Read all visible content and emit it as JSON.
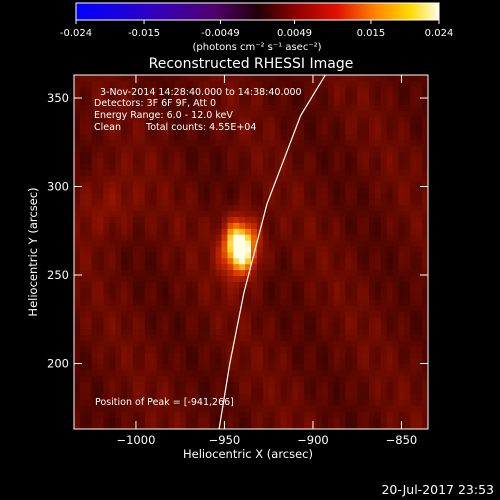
{
  "chart_data": {
    "type": "heatmap",
    "title": "Reconstructed RHESSI Image",
    "xlabel": "Heliocentric X (arcsec)",
    "ylabel": "Heliocentric Y (arcsec)",
    "xlim": [
      -1035,
      -835
    ],
    "ylim": [
      163,
      363
    ],
    "x_ticks": [
      -1000,
      -950,
      -900,
      -850
    ],
    "y_ticks": [
      200,
      250,
      300,
      350
    ],
    "colorbar": {
      "min": -0.024,
      "max": 0.024,
      "ticks": [
        "-0.024",
        "-0.015",
        "-0.0049",
        "0.0049",
        "0.015",
        "0.024"
      ],
      "tick_values": [
        -0.024,
        -0.015,
        -0.0049,
        0.0049,
        0.015,
        0.024
      ],
      "label": "(photons cm⁻² s⁻¹ asec⁻²)"
    },
    "peak_position": [
      -941,
      266
    ],
    "sources": [
      {
        "x": -941,
        "y": 266,
        "amplitude": 1.0,
        "sigma_x": 7,
        "sigma_y": 11
      },
      {
        "x": -1016,
        "y": 290,
        "amplitude": 0.18,
        "sigma_x": 12,
        "sigma_y": 14
      }
    ],
    "limb_curve": [
      [
        -953,
        163
      ],
      [
        -947,
        200
      ],
      [
        -939,
        240
      ],
      [
        -926,
        290
      ],
      [
        -907,
        340
      ],
      [
        -893,
        363
      ]
    ],
    "annotations": {
      "time_range": "3-Nov-2014 14:28:40.000 to 14:38:40.000",
      "detectors": "Detectors: 3F 6F 9F, Att 0",
      "energy": "Energy Range: 6.0 - 12.0 keV",
      "method": "Clean",
      "counts": "Total counts: 4.55E+04",
      "peak": "Position of Peak = [-941,266]"
    },
    "footer_date": "20-Jul-2017 23:53"
  }
}
